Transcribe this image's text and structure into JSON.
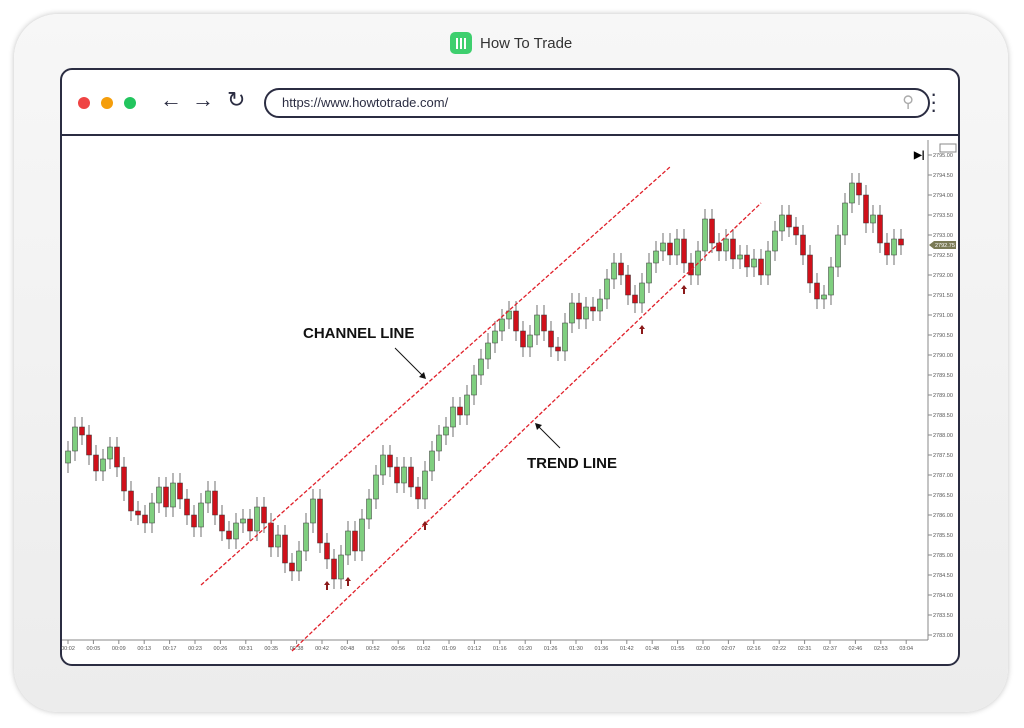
{
  "brand": {
    "name": "How To Trade",
    "color": "#3ecf6e"
  },
  "browser": {
    "url": "https://www.howtotrade.com/",
    "dots": [
      "#ef4444",
      "#f59e0b",
      "#22c55e"
    ]
  },
  "chart_data": {
    "type": "candlestick",
    "y_ticks": [
      "2795.00",
      "2794.50",
      "2794.00",
      "2793.50",
      "2793.00",
      "2792.50",
      "2792.00",
      "2791.50",
      "2791.00",
      "2790.50",
      "2790.00",
      "2789.50",
      "2789.00",
      "2788.50",
      "2788.00",
      "2787.50",
      "2787.00",
      "2786.50",
      "2786.00",
      "2785.50",
      "2785.00",
      "2784.50",
      "2784.00",
      "2783.50",
      "2783.00"
    ],
    "ylim": [
      2783,
      2795.5
    ],
    "current_price": "2792.75",
    "x_ticks": [
      "00:02",
      "00:05",
      "00:09",
      "00:13",
      "00:17",
      "00:23",
      "00:26",
      "00:31",
      "00:35",
      "00:38",
      "00:42",
      "00:48",
      "00:52",
      "00:56",
      "01:02",
      "01:09",
      "01:12",
      "01:16",
      "01:20",
      "01:26",
      "01:30",
      "01:36",
      "01:42",
      "01:48",
      "01:55",
      "02:00",
      "02:07",
      "02:16",
      "02:22",
      "02:31",
      "02:37",
      "02:46",
      "02:53",
      "03:04"
    ],
    "closes": [
      2787.6,
      2788.2,
      2788.0,
      2787.5,
      2787.1,
      2787.4,
      2787.7,
      2787.2,
      2786.6,
      2786.1,
      2786.0,
      2785.8,
      2786.3,
      2786.7,
      2786.2,
      2786.8,
      2786.4,
      2786.0,
      2785.7,
      2786.3,
      2786.6,
      2786.0,
      2785.6,
      2785.4,
      2785.8,
      2785.9,
      2785.6,
      2786.2,
      2785.8,
      2785.2,
      2785.5,
      2784.8,
      2784.6,
      2785.1,
      2785.8,
      2786.4,
      2785.3,
      2784.9,
      2784.4,
      2785.0,
      2785.6,
      2785.1,
      2785.9,
      2786.4,
      2787.0,
      2787.5,
      2787.2,
      2786.8,
      2787.2,
      2786.7,
      2786.4,
      2787.1,
      2787.6,
      2788.0,
      2788.2,
      2788.7,
      2788.5,
      2789.0,
      2789.5,
      2789.9,
      2790.3,
      2790.6,
      2790.9,
      2791.1,
      2790.6,
      2790.2,
      2790.5,
      2791.0,
      2790.6,
      2790.2,
      2790.1,
      2790.8,
      2791.3,
      2790.9,
      2791.2,
      2791.1,
      2791.4,
      2791.9,
      2792.3,
      2792.0,
      2791.5,
      2791.3,
      2791.8,
      2792.3,
      2792.6,
      2792.8,
      2792.5,
      2792.9,
      2792.3,
      2792.0,
      2792.6,
      2793.4,
      2792.8,
      2792.6,
      2792.9,
      2792.4,
      2792.5,
      2792.2,
      2792.4,
      2792.0,
      2792.6,
      2793.1,
      2793.5,
      2793.2,
      2793.0,
      2792.5,
      2791.8,
      2791.4,
      2791.5,
      2792.2,
      2793.0,
      2793.8,
      2794.3,
      2794.0,
      2793.3,
      2793.5,
      2792.8,
      2792.5,
      2792.9,
      2792.75
    ],
    "up_color": "#7fcf7f",
    "down_color": "#d0101a",
    "lines": [
      {
        "label": "CHANNEL LINE",
        "from": {
          "bar": 19,
          "price": 2784.25
        },
        "to": {
          "bar": 86,
          "price": 2794.7
        },
        "color": "#e0202a",
        "style": "dashed"
      },
      {
        "label": "TREND LINE",
        "from": {
          "bar": 32,
          "price": 2782.6
        },
        "to": {
          "bar": 99,
          "price": 2793.8
        },
        "color": "#e0202a",
        "style": "dashed"
      }
    ],
    "touch_markers": [
      {
        "bar": 37
      },
      {
        "bar": 40
      },
      {
        "bar": 51
      },
      {
        "bar": 82
      },
      {
        "bar": 88
      }
    ]
  }
}
